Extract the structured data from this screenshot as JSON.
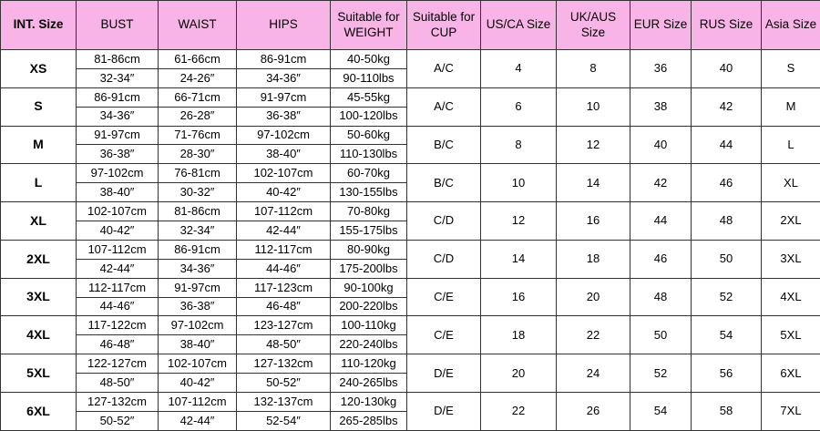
{
  "table": {
    "header": [
      "INT. Size",
      "BUST",
      "WAIST",
      "HIPS",
      "Suitable for WEIGHT",
      "Suitable for CUP",
      "US/CA Size",
      "UK/AUS Size",
      "EUR Size",
      "RUS Size",
      "Asia Size"
    ],
    "rows": [
      {
        "size": "XS",
        "bust": [
          "81-86cm",
          "32-34″"
        ],
        "waist": [
          "61-66cm",
          "24-26″"
        ],
        "hips": [
          "86-91cm",
          "34-36″"
        ],
        "weight": [
          "40-50kg",
          "90-110lbs"
        ],
        "cup": "A/C",
        "us": 4,
        "uk": 8,
        "eur": 36,
        "rus": 40,
        "asia": "S"
      },
      {
        "size": "S",
        "bust": [
          "86-91cm",
          "34-36″"
        ],
        "waist": [
          "66-71cm",
          "26-28″"
        ],
        "hips": [
          "91-97cm",
          "36-38″"
        ],
        "weight": [
          "45-55kg",
          "100-120lbs"
        ],
        "cup": "A/C",
        "us": 6,
        "uk": 10,
        "eur": 38,
        "rus": 42,
        "asia": "M"
      },
      {
        "size": "M",
        "bust": [
          "91-97cm",
          "36-38″"
        ],
        "waist": [
          "71-76cm",
          "28-30″"
        ],
        "hips": [
          "97-102cm",
          "38-40″"
        ],
        "weight": [
          "50-60kg",
          "110-130lbs"
        ],
        "cup": "B/C",
        "us": 8,
        "uk": 12,
        "eur": 40,
        "rus": 44,
        "asia": "L"
      },
      {
        "size": "L",
        "bust": [
          "97-102cm",
          "38-40″"
        ],
        "waist": [
          "76-81cm",
          "30-32″"
        ],
        "hips": [
          "102-107cm",
          "40-42″"
        ],
        "weight": [
          "60-70kg",
          "130-155lbs"
        ],
        "cup": "B/C",
        "us": 10,
        "uk": 14,
        "eur": 42,
        "rus": 46,
        "asia": "XL"
      },
      {
        "size": "XL",
        "bust": [
          "102-107cm",
          "40-42″"
        ],
        "waist": [
          "81-86cm",
          "32-34″"
        ],
        "hips": [
          "107-112cm",
          "42-44″"
        ],
        "weight": [
          "70-80kg",
          "155-175lbs"
        ],
        "cup": "C/D",
        "us": 12,
        "uk": 16,
        "eur": 44,
        "rus": 48,
        "asia": "2XL"
      },
      {
        "size": "2XL",
        "bust": [
          "107-112cm",
          "42-44″"
        ],
        "waist": [
          "86-91cm",
          "34-36″"
        ],
        "hips": [
          "112-117cm",
          "44-46″"
        ],
        "weight": [
          "80-90kg",
          "175-200lbs"
        ],
        "cup": "C/D",
        "us": 14,
        "uk": 18,
        "eur": 46,
        "rus": 50,
        "asia": "3XL"
      },
      {
        "size": "3XL",
        "bust": [
          "112-117cm",
          "44-46″"
        ],
        "waist": [
          "91-97cm",
          "36-38″"
        ],
        "hips": [
          "117-123cm",
          "46-48″"
        ],
        "weight": [
          "90-100kg",
          "200-220lbs"
        ],
        "cup": "C/E",
        "us": 16,
        "uk": 20,
        "eur": 48,
        "rus": 52,
        "asia": "4XL"
      },
      {
        "size": "4XL",
        "bust": [
          "117-122cm",
          "46-48″"
        ],
        "waist": [
          "97-102cm",
          "38-40″"
        ],
        "hips": [
          "123-127cm",
          "48-50″"
        ],
        "weight": [
          "100-110kg",
          "220-240lbs"
        ],
        "cup": "C/E",
        "us": 18,
        "uk": 22,
        "eur": 50,
        "rus": 54,
        "asia": "5XL"
      },
      {
        "size": "5XL",
        "bust": [
          "122-127cm",
          "48-50″"
        ],
        "waist": [
          "102-107cm",
          "40-42″"
        ],
        "hips": [
          "127-132cm",
          "50-52″"
        ],
        "weight": [
          "110-120kg",
          "240-265lbs"
        ],
        "cup": "D/E",
        "us": 20,
        "uk": 24,
        "eur": 52,
        "rus": 56,
        "asia": "6XL"
      },
      {
        "size": "6XL",
        "bust": [
          "127-132cm",
          "50-52″"
        ],
        "waist": [
          "107-112cm",
          "42-44″"
        ],
        "hips": [
          "132-137cm",
          "52-54″"
        ],
        "weight": [
          "120-130kg",
          "265-285lbs"
        ],
        "cup": "D/E",
        "us": 22,
        "uk": 26,
        "eur": 54,
        "rus": 58,
        "asia": "7XL"
      }
    ]
  }
}
